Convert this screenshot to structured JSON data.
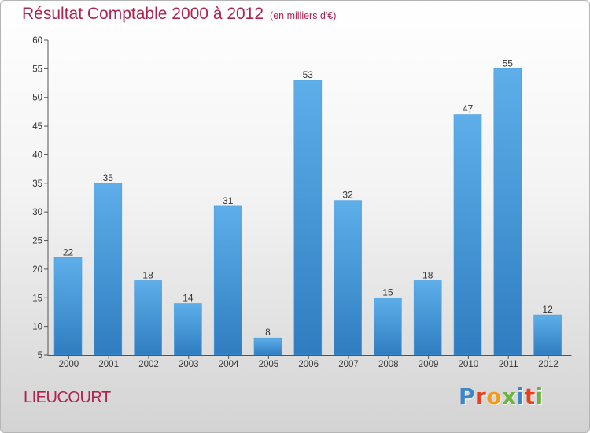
{
  "chart_data": {
    "type": "bar",
    "title": "Résultat Comptable 2000 à 2012",
    "subtitle": "(en milliers d'€)",
    "categories": [
      "2000",
      "2001",
      "2002",
      "2003",
      "2004",
      "2005",
      "2006",
      "2007",
      "2008",
      "2009",
      "2010",
      "2011",
      "2012"
    ],
    "values": [
      22,
      35,
      18,
      14,
      31,
      8,
      53,
      32,
      15,
      18,
      47,
      55,
      12
    ],
    "ylim": [
      5,
      60
    ],
    "yticks": [
      5,
      10,
      15,
      20,
      25,
      30,
      35,
      40,
      45,
      50,
      55,
      60
    ],
    "grid": false,
    "xlabel": "",
    "ylabel": "",
    "bar_color_top": "#5eaeea",
    "bar_color_bottom": "#2f7dc0"
  },
  "footer": {
    "commune": "LIEUCOURT",
    "brand": "Proxiti",
    "brand_colors": [
      "#3e86c9",
      "#e8401c",
      "#f39b16",
      "#6db33f",
      "#3e86c9",
      "#e8401c",
      "#6db33f"
    ]
  },
  "colors": {
    "title": "#b0234f"
  }
}
